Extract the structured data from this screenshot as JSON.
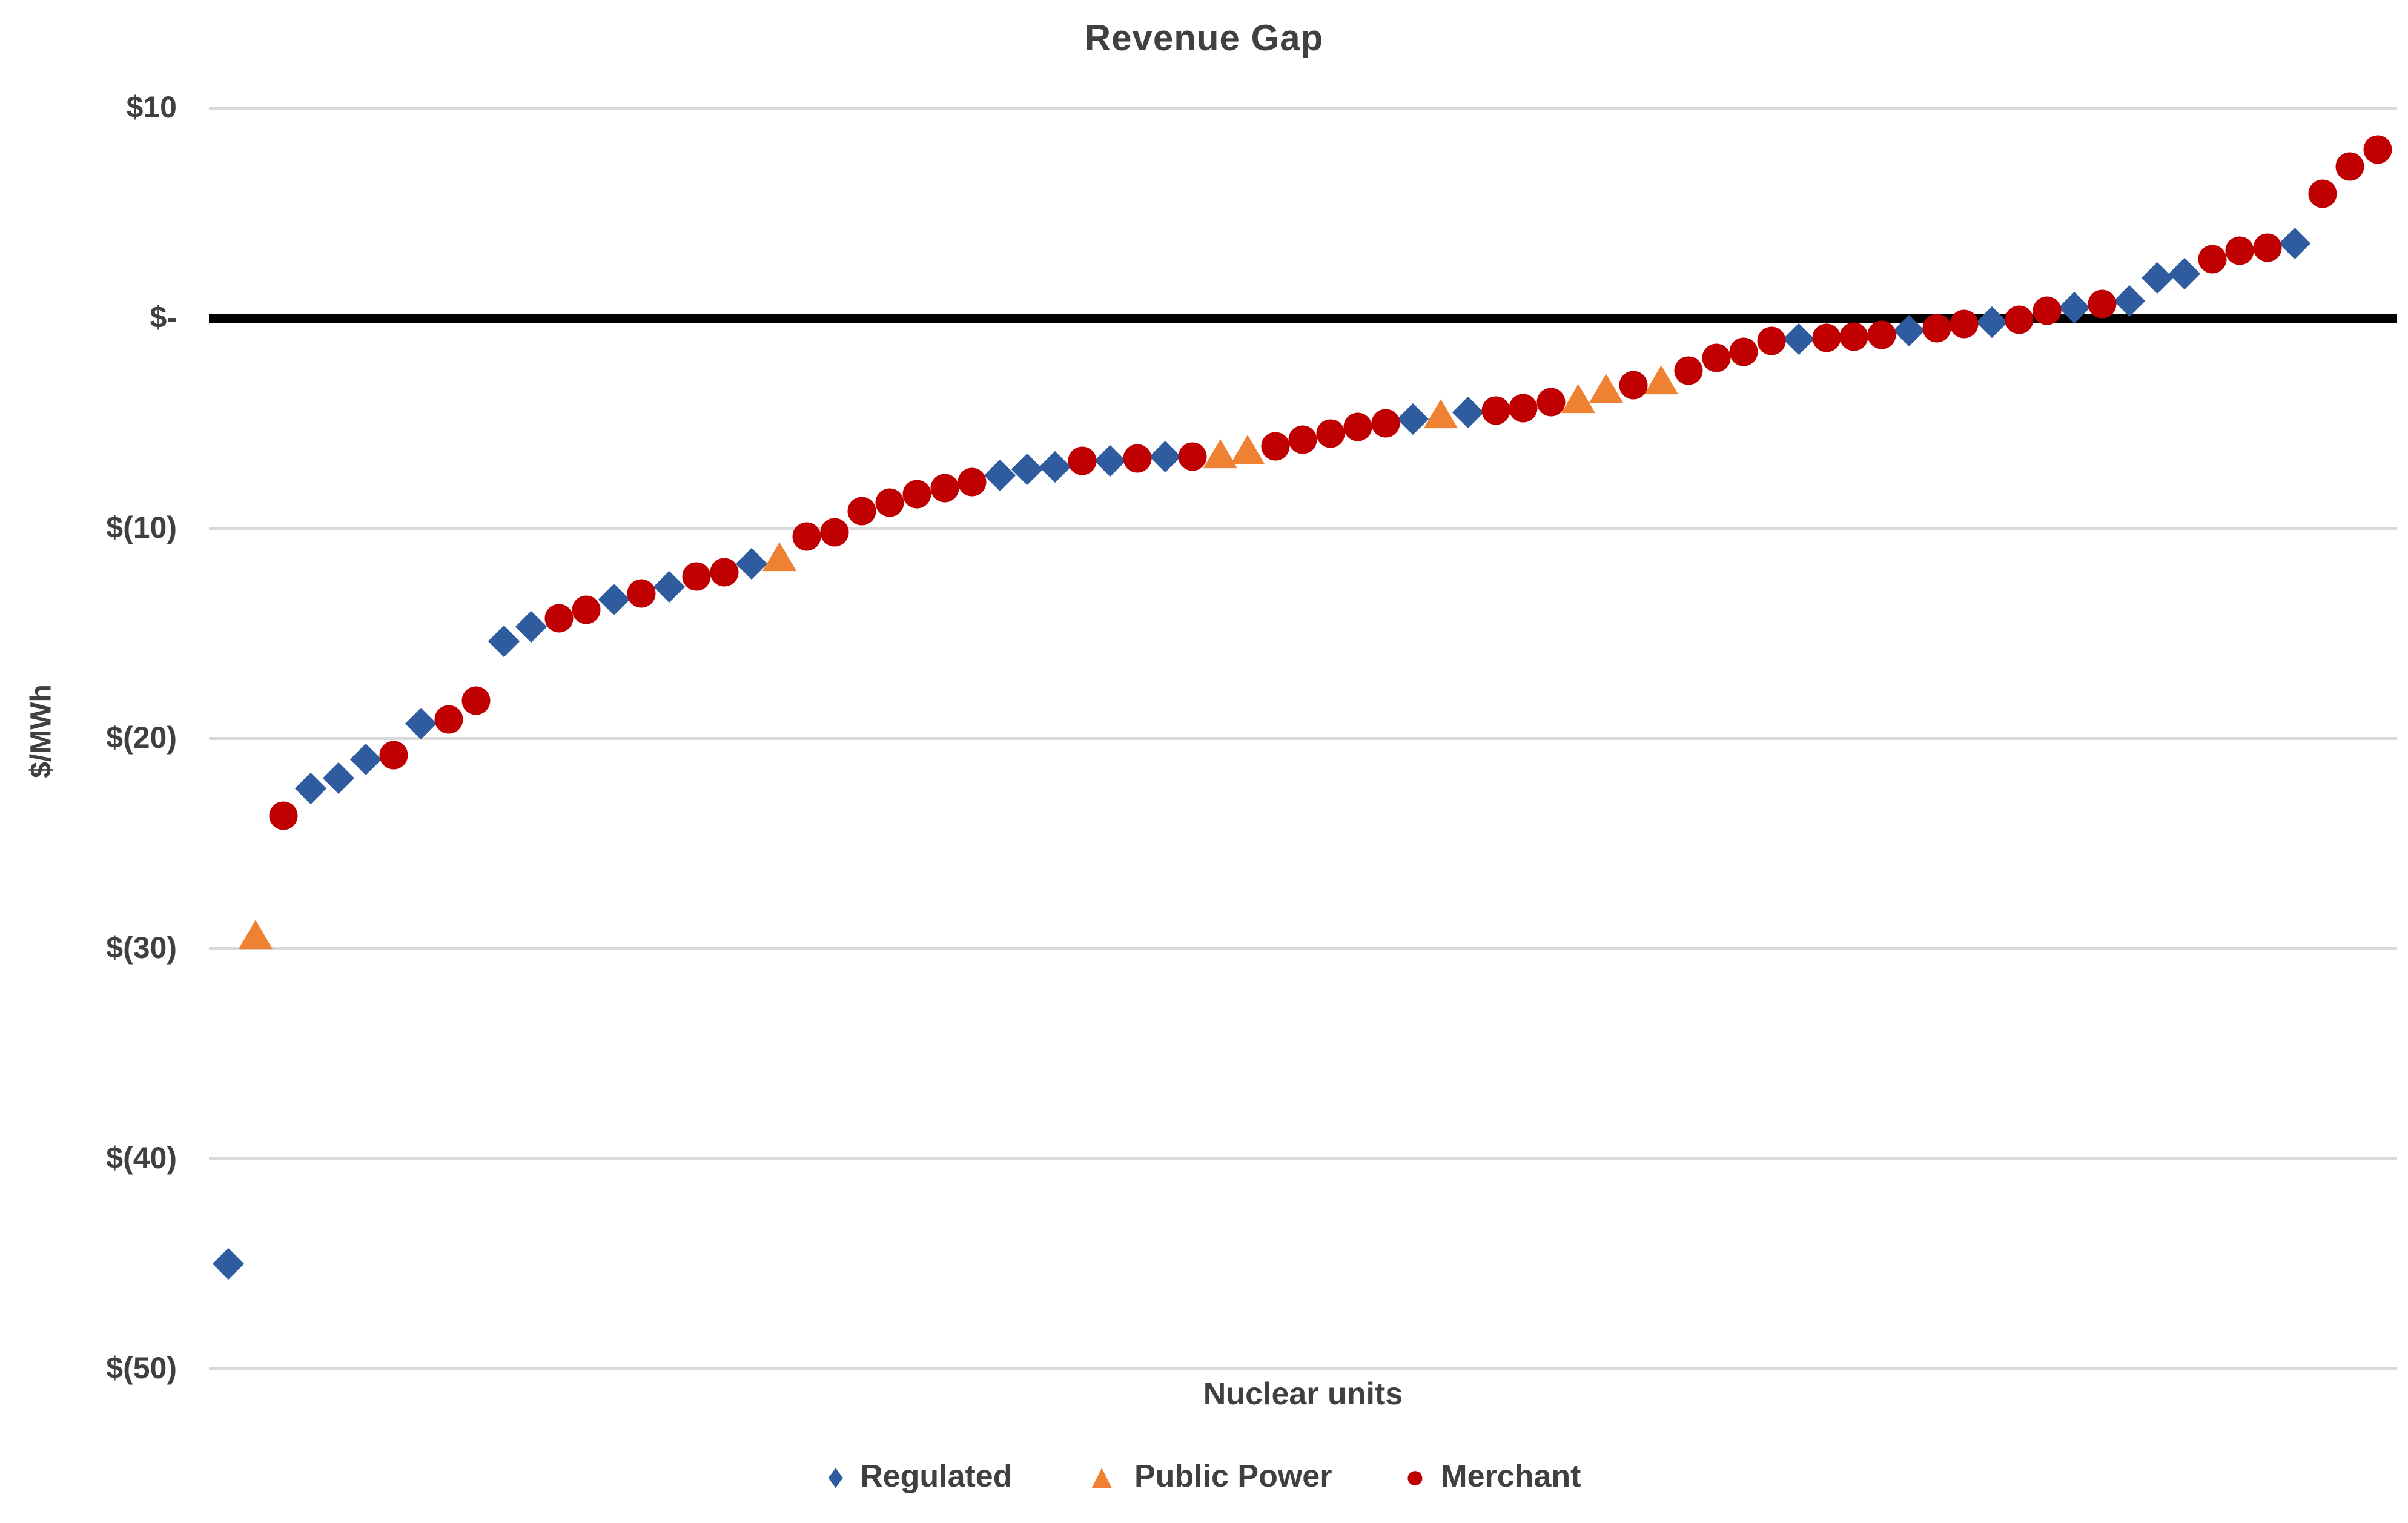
{
  "title": "Revenue Gap",
  "colors": {
    "regulated_blue": "#2e5c9e",
    "public_power_orange": "#ef8133",
    "merchant_red": "#c00000",
    "gridline_gray": "#d9d9d9",
    "zero_line_black": "#000000",
    "text_gray": "#404040"
  },
  "legend": {
    "regulated_label": "Regulated",
    "public_power_label": "Public Power",
    "merchant_label": "Merchant",
    "regulated_glyph": "♦",
    "public_power_glyph": "▲",
    "merchant_glyph": "●"
  },
  "chart_data": {
    "type": "scatter",
    "title": "Revenue Gap",
    "xlabel": "Nuclear units",
    "ylabel": "$/MWh",
    "ylim": [
      -52,
      12
    ],
    "grid": "horizontal",
    "legend_position": "bottom",
    "zero_reference_line": true,
    "x_is_rank": true,
    "y_axis_ticks": [
      {
        "label": "$10",
        "value": 10,
        "emphasis": false
      },
      {
        "label": "$-",
        "value": 0,
        "emphasis": true
      },
      {
        "label": "$(10)",
        "value": -10,
        "emphasis": false
      },
      {
        "label": "$(20)",
        "value": -20,
        "emphasis": false
      },
      {
        "label": "$(30)",
        "value": -30,
        "emphasis": false
      },
      {
        "label": "$(40)",
        "value": -40,
        "emphasis": false
      },
      {
        "label": "$(50)",
        "value": -50,
        "emphasis": false
      }
    ],
    "series": [
      {
        "name": "Regulated",
        "marker": "diamond",
        "color": "#2e5c9e",
        "points": [
          {
            "unit": 1,
            "value": -45.0
          },
          {
            "unit": 4,
            "value": -22.4
          },
          {
            "unit": 5,
            "value": -21.9
          },
          {
            "unit": 6,
            "value": -21.0
          },
          {
            "unit": 8,
            "value": -19.3
          },
          {
            "unit": 11,
            "value": -15.4
          },
          {
            "unit": 12,
            "value": -14.7
          },
          {
            "unit": 15,
            "value": -13.4
          },
          {
            "unit": 17,
            "value": -12.8
          },
          {
            "unit": 20,
            "value": -11.7
          },
          {
            "unit": 29,
            "value": -7.5
          },
          {
            "unit": 30,
            "value": -7.2
          },
          {
            "unit": 31,
            "value": -7.1
          },
          {
            "unit": 33,
            "value": -6.8
          },
          {
            "unit": 35,
            "value": -6.6
          },
          {
            "unit": 44,
            "value": -4.8
          },
          {
            "unit": 46,
            "value": -4.5
          },
          {
            "unit": 58,
            "value": -1.0
          },
          {
            "unit": 62,
            "value": -0.6
          },
          {
            "unit": 65,
            "value": -0.2
          },
          {
            "unit": 68,
            "value": 0.5
          },
          {
            "unit": 70,
            "value": 0.8
          },
          {
            "unit": 71,
            "value": 1.9
          },
          {
            "unit": 72,
            "value": 2.1
          },
          {
            "unit": 76,
            "value": 3.55
          }
        ]
      },
      {
        "name": "Public Power",
        "marker": "triangle",
        "color": "#ef8133",
        "points": [
          {
            "unit": 2,
            "value": -29.4
          },
          {
            "unit": 21,
            "value": -11.4
          },
          {
            "unit": 37,
            "value": -6.5
          },
          {
            "unit": 38,
            "value": -6.3
          },
          {
            "unit": 45,
            "value": -4.6
          },
          {
            "unit": 50,
            "value": -3.9
          },
          {
            "unit": 51,
            "value": -3.4
          },
          {
            "unit": 53,
            "value": -3.0
          }
        ]
      },
      {
        "name": "Merchant",
        "marker": "circle",
        "color": "#c00000",
        "points": [
          {
            "unit": 3,
            "value": -23.7
          },
          {
            "unit": 7,
            "value": -20.8
          },
          {
            "unit": 9,
            "value": -19.1
          },
          {
            "unit": 10,
            "value": -18.2
          },
          {
            "unit": 13,
            "value": -14.3
          },
          {
            "unit": 14,
            "value": -13.9
          },
          {
            "unit": 16,
            "value": -13.1
          },
          {
            "unit": 18,
            "value": -12.3
          },
          {
            "unit": 19,
            "value": -12.1
          },
          {
            "unit": 22,
            "value": -10.4
          },
          {
            "unit": 23,
            "value": -10.2
          },
          {
            "unit": 24,
            "value": -9.2
          },
          {
            "unit": 25,
            "value": -8.8
          },
          {
            "unit": 26,
            "value": -8.4
          },
          {
            "unit": 27,
            "value": -8.1
          },
          {
            "unit": 28,
            "value": -7.8
          },
          {
            "unit": 32,
            "value": -6.8
          },
          {
            "unit": 34,
            "value": -6.7
          },
          {
            "unit": 36,
            "value": -6.6
          },
          {
            "unit": 39,
            "value": -6.1
          },
          {
            "unit": 40,
            "value": -5.8
          },
          {
            "unit": 41,
            "value": -5.5
          },
          {
            "unit": 42,
            "value": -5.2
          },
          {
            "unit": 43,
            "value": -5.0
          },
          {
            "unit": 47,
            "value": -4.4
          },
          {
            "unit": 48,
            "value": -4.3
          },
          {
            "unit": 49,
            "value": -4.0
          },
          {
            "unit": 52,
            "value": -3.2
          },
          {
            "unit": 54,
            "value": -2.5
          },
          {
            "unit": 55,
            "value": -1.9
          },
          {
            "unit": 56,
            "value": -1.6
          },
          {
            "unit": 57,
            "value": -1.1
          },
          {
            "unit": 59,
            "value": -0.95
          },
          {
            "unit": 60,
            "value": -0.9
          },
          {
            "unit": 61,
            "value": -0.8
          },
          {
            "unit": 63,
            "value": -0.5
          },
          {
            "unit": 64,
            "value": -0.3
          },
          {
            "unit": 66,
            "value": -0.1
          },
          {
            "unit": 67,
            "value": 0.35
          },
          {
            "unit": 69,
            "value": 0.65
          },
          {
            "unit": 73,
            "value": 2.8
          },
          {
            "unit": 74,
            "value": 3.2
          },
          {
            "unit": 75,
            "value": 3.35
          },
          {
            "unit": 77,
            "value": 5.9
          },
          {
            "unit": 78,
            "value": 7.2
          },
          {
            "unit": 79,
            "value": 8.0
          }
        ]
      }
    ]
  }
}
